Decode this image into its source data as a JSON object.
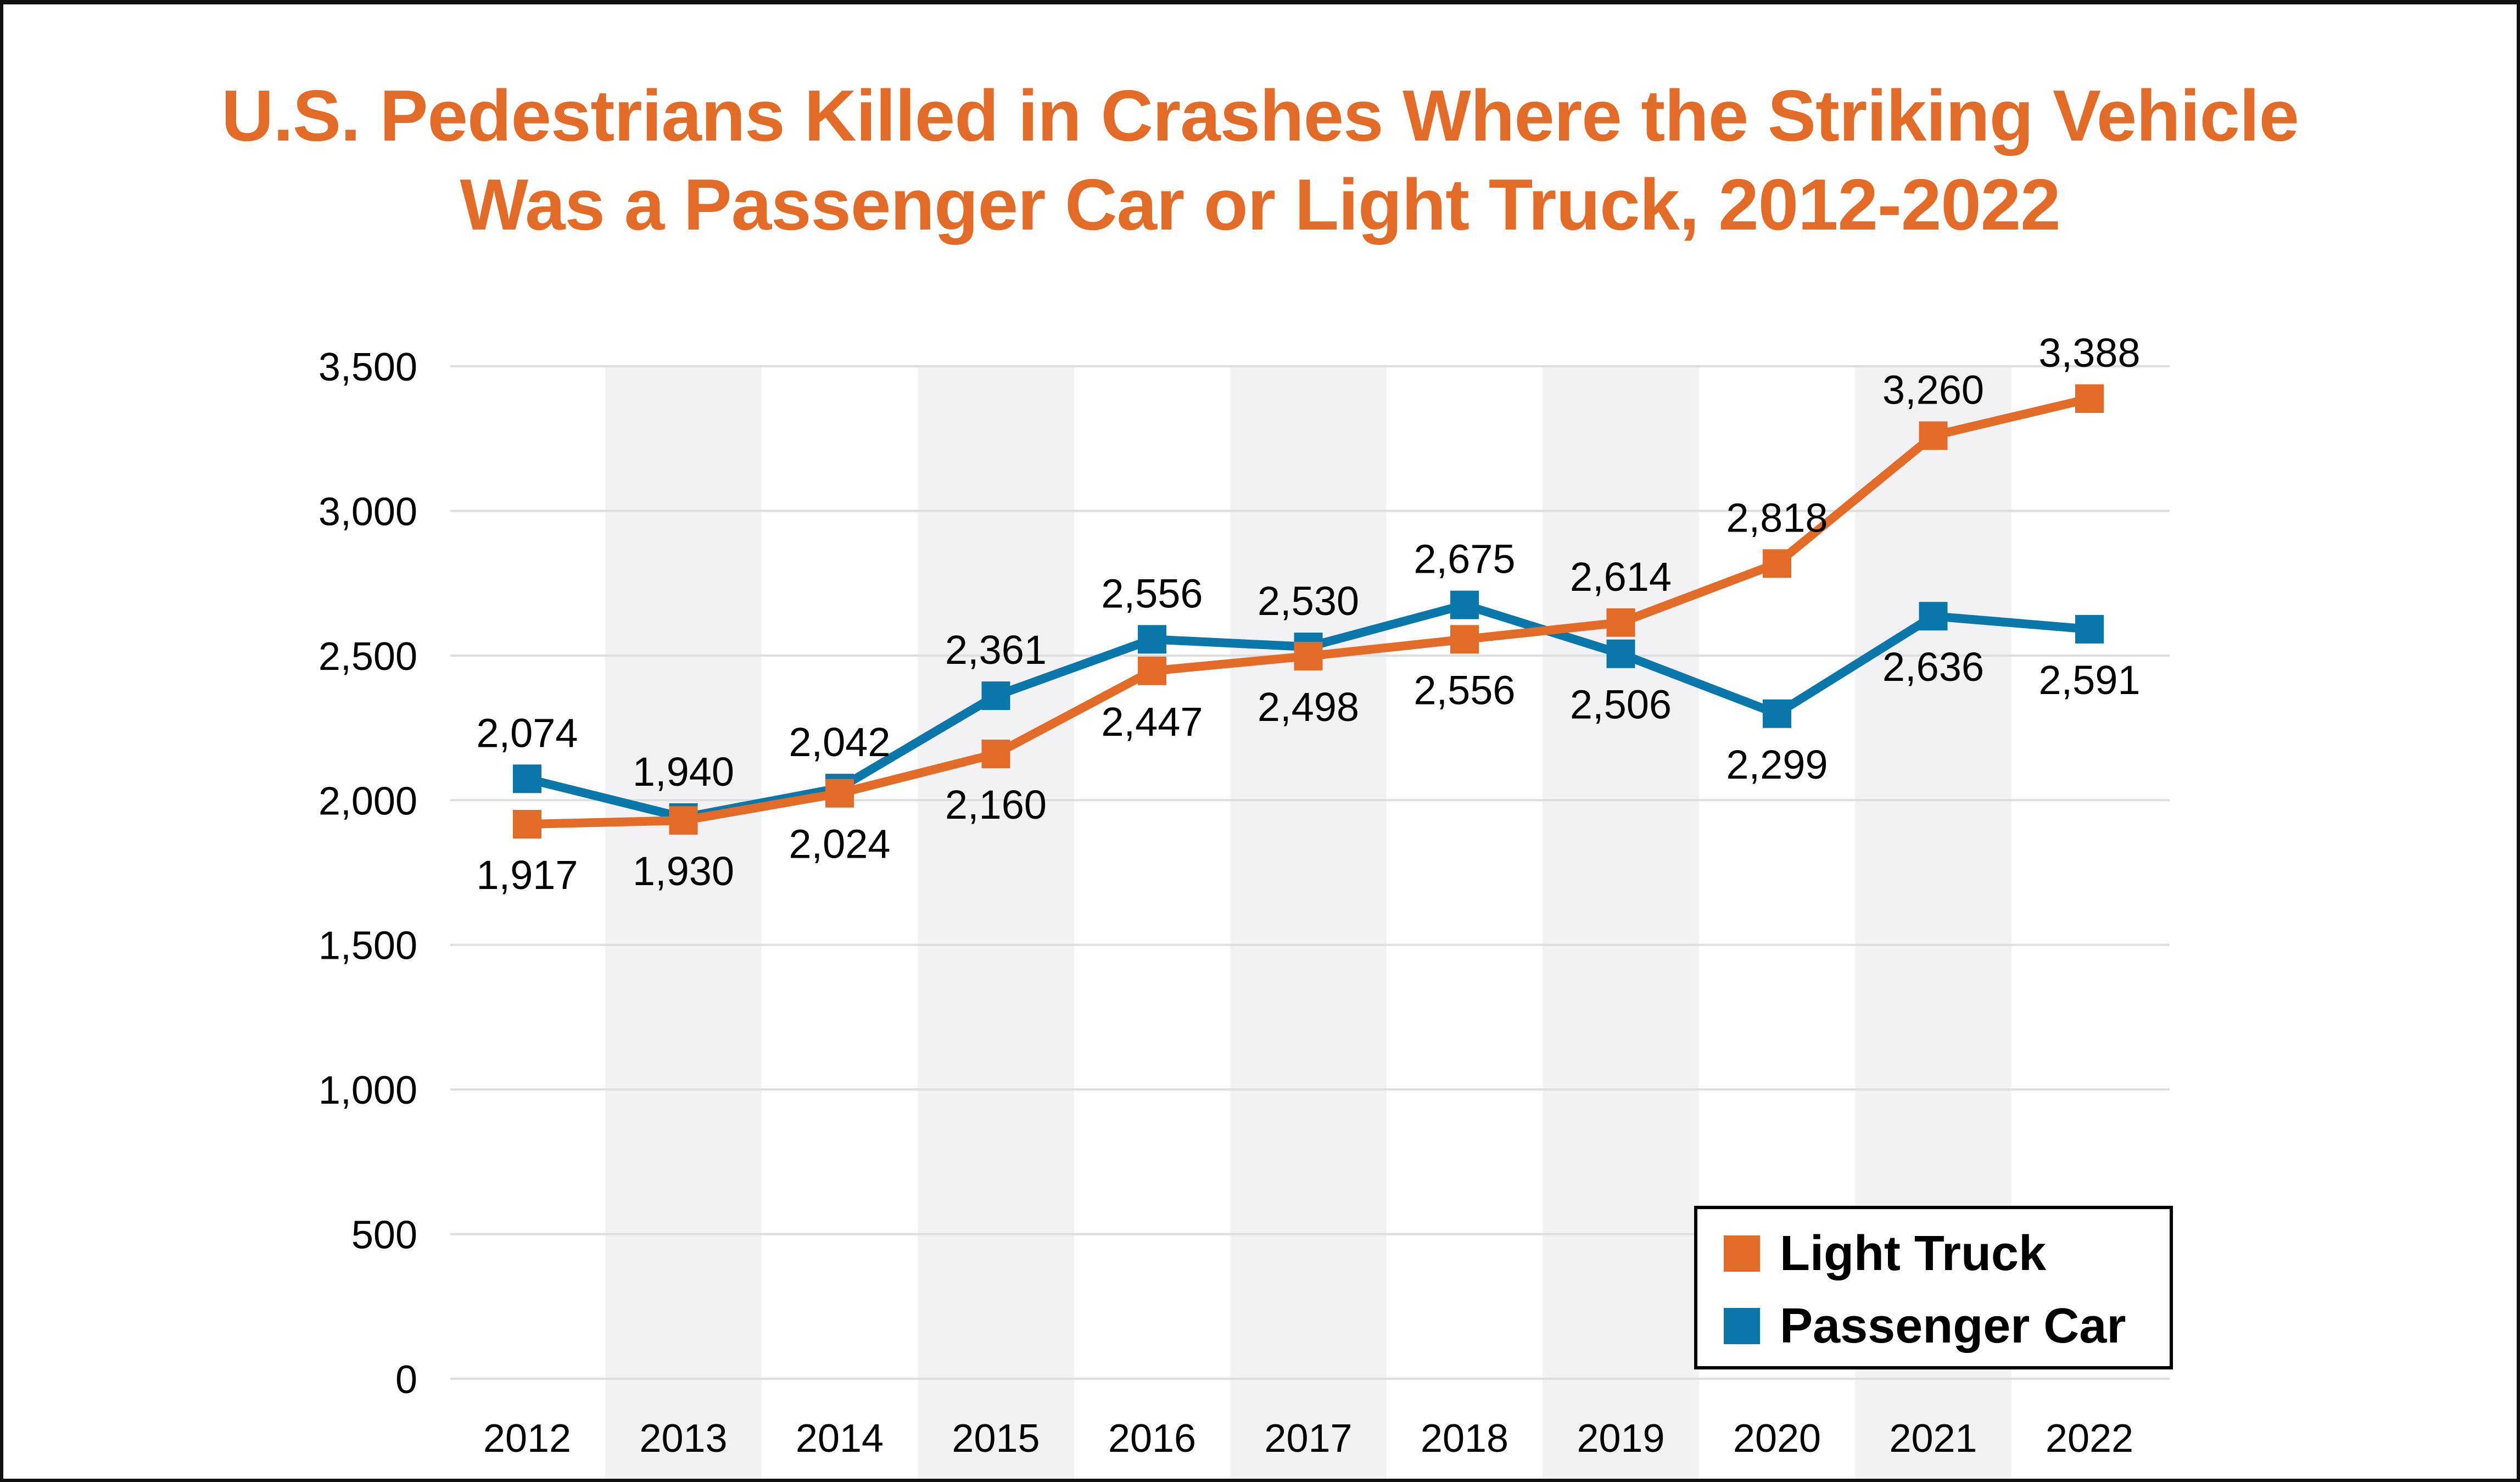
{
  "chart_data": {
    "type": "line",
    "title": "U.S. Pedestrians Killed in Crashes Where the Striking Vehicle Was a Passenger Car or Light Truck, 2012-2022",
    "title_lines": [
      "U.S. Pedestrians Killed in Crashes Where the Striking Vehicle",
      "Was a Passenger Car or Light Truck, 2012-2022"
    ],
    "xlabel": "",
    "ylabel": "",
    "categories": [
      "2012",
      "2013",
      "2014",
      "2015",
      "2016",
      "2017",
      "2018",
      "2019",
      "2020",
      "2021",
      "2022"
    ],
    "ylim": [
      0,
      3500
    ],
    "yticks": [
      0,
      500,
      1000,
      1500,
      2000,
      2500,
      3000,
      3500
    ],
    "ytick_labels": [
      "0",
      "500",
      "1,000",
      "1,500",
      "2,000",
      "2,500",
      "3,000",
      "3,500"
    ],
    "grid": "horizontal",
    "alternating_column_shading": true,
    "legend_position": "bottom-right",
    "series": [
      {
        "name": "Light Truck",
        "color": "#E26B27",
        "marker": "square",
        "values": [
          1917,
          1930,
          2024,
          2160,
          2447,
          2498,
          2556,
          2614,
          2818,
          3260,
          3388
        ],
        "labels": [
          "1,917",
          "1,930",
          "2,024",
          "2,160",
          "2,447",
          "2,498",
          "2,556",
          "2,614",
          "2,818",
          "3,260",
          "3,388"
        ],
        "label_positions": [
          "below",
          "below",
          "below",
          "below",
          "below",
          "below",
          "below",
          "above",
          "above",
          "above",
          "above"
        ]
      },
      {
        "name": "Passenger Car",
        "color": "#0A77AA",
        "marker": "square",
        "values": [
          2074,
          1940,
          2042,
          2361,
          2556,
          2530,
          2675,
          2506,
          2299,
          2636,
          2591
        ],
        "labels": [
          "2,074",
          "1,940",
          "2,042",
          "2,361",
          "2,556",
          "2,530",
          "2,675",
          "2,506",
          "2,299",
          "2,636",
          "2,591"
        ],
        "label_positions": [
          "above",
          "above",
          "above",
          "above",
          "above",
          "above",
          "above",
          "below",
          "below",
          "below",
          "below"
        ]
      }
    ]
  },
  "colors": {
    "title": "#E26B27",
    "gridline": "#DDDEE0",
    "shade": "#F2F2F4"
  }
}
